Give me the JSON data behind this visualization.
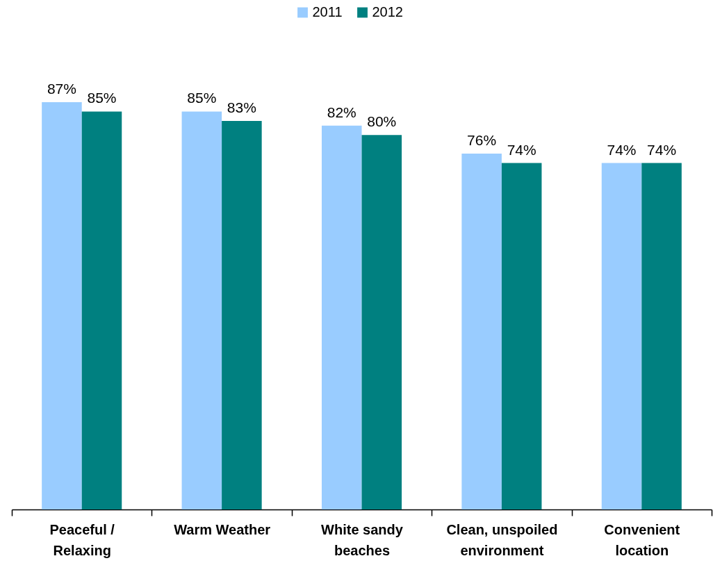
{
  "chart_data": {
    "type": "bar",
    "categories": [
      "Peaceful / Relaxing",
      "Warm Weather",
      "White sandy beaches",
      "Clean, unspoiled environment",
      "Convenient location"
    ],
    "series": [
      {
        "name": "2011",
        "color": "#99ccff",
        "values": [
          87,
          85,
          82,
          76,
          74
        ],
        "value_labels": [
          "87%",
          "85%",
          "82%",
          "76%",
          "74%"
        ]
      },
      {
        "name": "2012",
        "color": "#008080",
        "values": [
          85,
          83,
          80,
          74,
          74
        ],
        "value_labels": [
          "85%",
          "83%",
          "80%",
          "74%",
          "74%"
        ]
      }
    ],
    "legend": "top",
    "tick_labels": "x"
  }
}
